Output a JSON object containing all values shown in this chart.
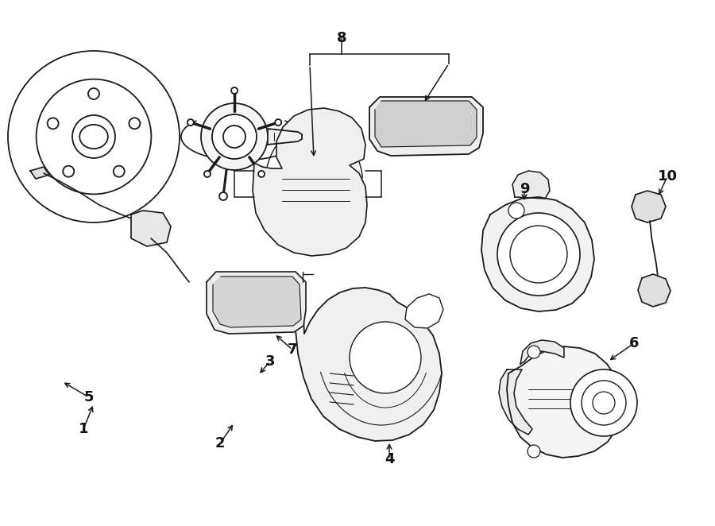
{
  "bg_color": "#ffffff",
  "lc": "#1a1a1a",
  "lw": 1.3,
  "fig_w": 9.0,
  "fig_h": 6.62,
  "xlim": [
    0,
    900
  ],
  "ylim": [
    0,
    662
  ]
}
